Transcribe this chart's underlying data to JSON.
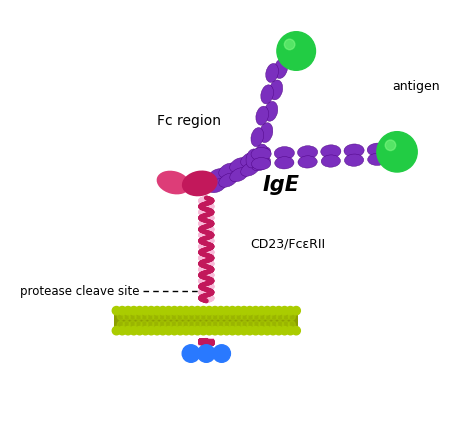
{
  "bg_color": "#ffffff",
  "purple": "#7B2FBE",
  "pink_red": "#C2185B",
  "pink_red_light": "#E91E8C",
  "green": "#22CC44",
  "yellow_green": "#AACC00",
  "yellow_green_dark": "#8B9E00",
  "blue": "#2979FF",
  "pink_coil1": "#F8BBD9",
  "pink_coil2": "#C2185B",
  "label_ige": "IgE",
  "label_fc": "Fc region",
  "label_antigen": "antigen",
  "label_cd23": "CD23/FcεRII",
  "label_protease": "protease cleave site",
  "figsize": [
    4.74,
    4.44
  ],
  "dpi": 100
}
